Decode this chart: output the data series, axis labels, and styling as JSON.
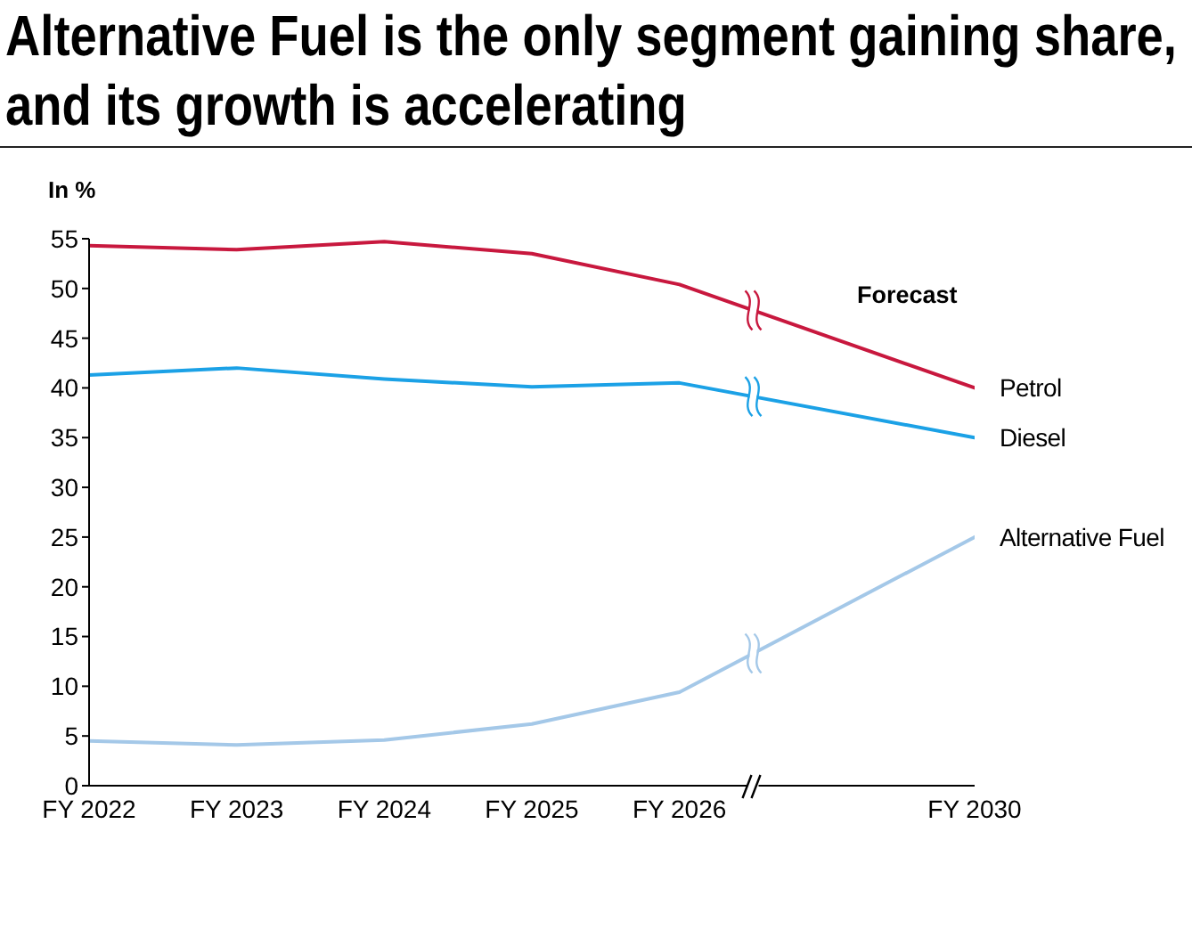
{
  "chart_data": {
    "type": "line",
    "title": "Alternative Fuel is the only segment gaining share, and its growth is accelerating",
    "ylabel": "In %",
    "annotations": [
      "Forecast"
    ],
    "categories": [
      "FY 2022",
      "FY 2023",
      "FY 2024",
      "FY 2025",
      "FY 2026",
      null,
      "FY 2030"
    ],
    "series": [
      {
        "name": "Petrol",
        "color": "#c8183e",
        "values": [
          54.3,
          53.9,
          54.7,
          53.5,
          50.4,
          null,
          40
        ]
      },
      {
        "name": "Diesel",
        "color": "#1ba1e6",
        "values": [
          41.3,
          42.0,
          40.9,
          40.1,
          40.5,
          null,
          35
        ]
      },
      {
        "name": "Alternative Fuel",
        "color": "#a4c8e8",
        "values": [
          4.5,
          4.1,
          4.6,
          6.2,
          9.4,
          null,
          25
        ]
      }
    ],
    "ylim": [
      0,
      55
    ],
    "yticks": [
      0,
      5,
      10,
      15,
      20,
      25,
      30,
      35,
      40,
      45,
      50,
      55
    ],
    "line_style": "solid"
  }
}
